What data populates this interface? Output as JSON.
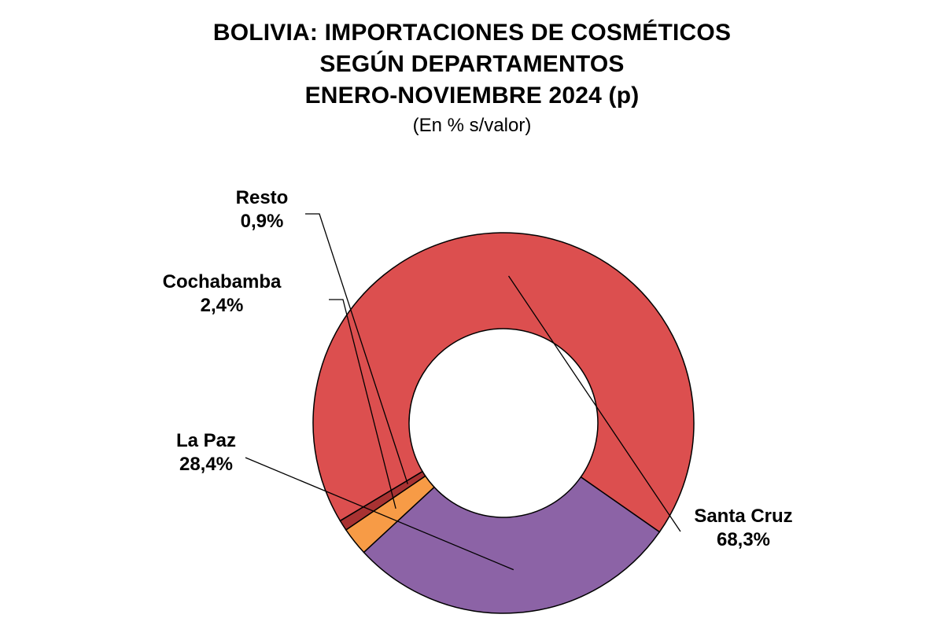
{
  "chart_data": {
    "type": "pie",
    "variant": "donut",
    "title_lines": [
      "BOLIVIA: IMPORTACIONES DE COSMÉTICOS",
      "SEGÚN DEPARTAMENTOS",
      "ENERO-NOVIEMBRE 2024 (p)"
    ],
    "subtitle": "(En % s/valor)",
    "slices": [
      {
        "name": "Santa Cruz",
        "value": 68.3,
        "label": "68,3%",
        "color": "#DC4F4F"
      },
      {
        "name": "La Paz",
        "value": 28.4,
        "label": "28,4%",
        "color": "#8C63A6"
      },
      {
        "name": "Cochabamba",
        "value": 2.4,
        "label": "2,4%",
        "color": "#F79B46"
      },
      {
        "name": "Resto",
        "value": 0.9,
        "label": "0,9%",
        "color": "#A83232"
      }
    ],
    "legend": "none"
  }
}
